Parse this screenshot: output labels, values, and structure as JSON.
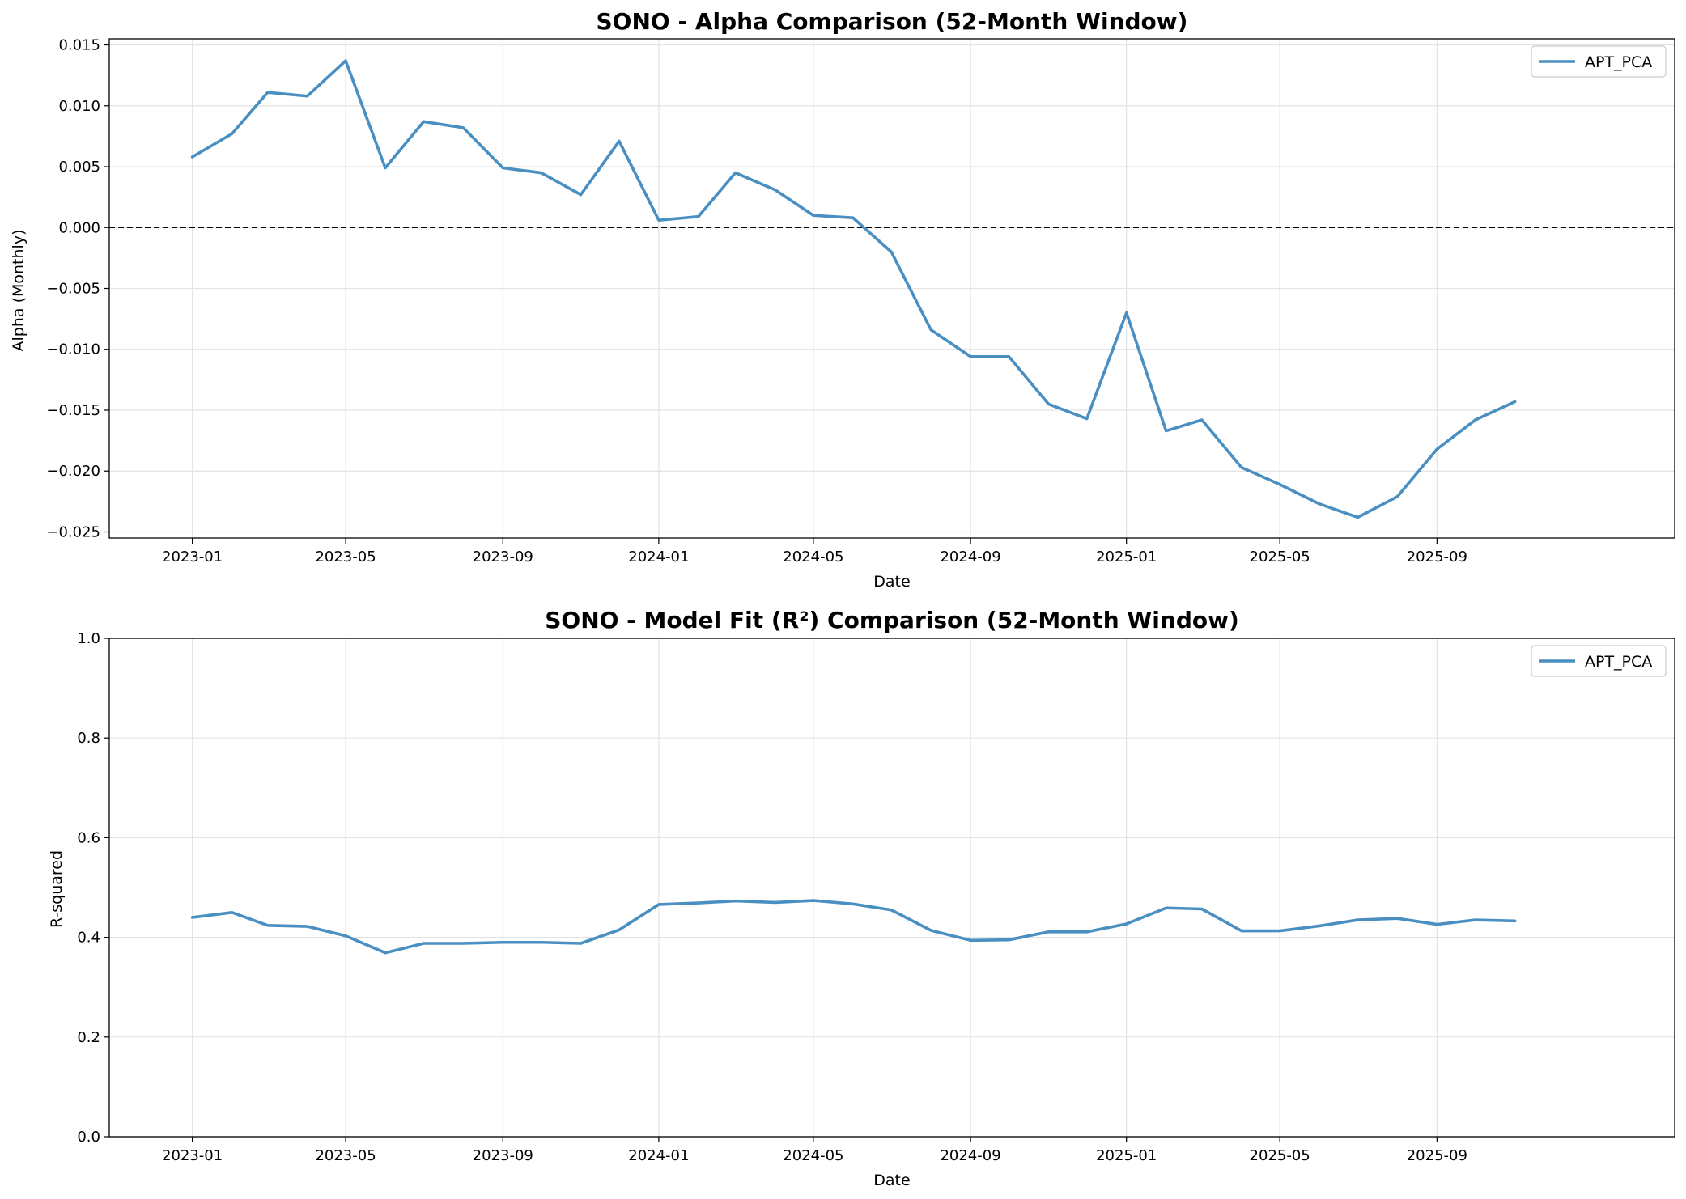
{
  "chart_data": [
    {
      "type": "line",
      "title": "SONO - Alpha Comparison (52-Month Window)",
      "xlabel": "Date",
      "ylabel": "Alpha (Monthly)",
      "x": [
        "2023-01",
        "2023-02",
        "2023-03",
        "2023-04",
        "2023-05",
        "2023-06",
        "2023-07",
        "2023-08",
        "2023-09",
        "2023-10",
        "2023-11",
        "2023-12",
        "2024-01",
        "2024-02",
        "2024-03",
        "2024-04",
        "2024-05",
        "2024-06",
        "2024-07",
        "2024-08",
        "2024-09",
        "2024-10",
        "2024-11",
        "2024-12",
        "2025-01",
        "2025-02",
        "2025-03",
        "2025-04",
        "2025-05",
        "2025-06",
        "2025-07",
        "2025-08",
        "2025-09",
        "2025-10",
        "2025-11"
      ],
      "series": [
        {
          "name": "APT_PCA",
          "color": "#4a8fc2",
          "values": [
            0.0058,
            0.0077,
            0.0111,
            0.0108,
            0.0137,
            0.0049,
            0.0087,
            0.0082,
            0.0049,
            0.0045,
            0.0027,
            0.0071,
            0.0006,
            0.0009,
            0.0045,
            0.0031,
            0.001,
            0.0008,
            -0.002,
            -0.0084,
            -0.0106,
            -0.0106,
            -0.0145,
            -0.0157,
            -0.007,
            -0.0167,
            -0.0158,
            -0.0197,
            -0.0211,
            -0.0227,
            -0.0238,
            -0.0221,
            -0.0182,
            -0.0158,
            -0.0143
          ]
        }
      ],
      "xlim": [
        "2022-10-28",
        "2026-03-06"
      ],
      "ylim": [
        -0.0255,
        0.0155
      ],
      "xticks": [
        "2023-01",
        "2023-05",
        "2023-09",
        "2024-01",
        "2024-05",
        "2024-09",
        "2025-01",
        "2025-05",
        "2025-09"
      ],
      "yticks": [
        -0.025,
        -0.02,
        -0.015,
        -0.01,
        -0.005,
        0.0,
        0.005,
        0.01,
        0.015
      ],
      "ytick_labels": [
        "−0.025",
        "−0.020",
        "−0.015",
        "−0.010",
        "−0.005",
        "0.000",
        "0.005",
        "0.010",
        "0.015"
      ],
      "reference_line": {
        "y": 0,
        "style": "dashed",
        "color": "#000000"
      },
      "grid": true,
      "legend": "top-right"
    },
    {
      "type": "line",
      "title": "SONO - Model Fit (R²) Comparison (52-Month Window)",
      "xlabel": "Date",
      "ylabel": "R-squared",
      "x": [
        "2023-01",
        "2023-02",
        "2023-03",
        "2023-04",
        "2023-05",
        "2023-06",
        "2023-07",
        "2023-08",
        "2023-09",
        "2023-10",
        "2023-11",
        "2023-12",
        "2024-01",
        "2024-02",
        "2024-03",
        "2024-04",
        "2024-05",
        "2024-06",
        "2024-07",
        "2024-08",
        "2024-09",
        "2024-10",
        "2024-11",
        "2024-12",
        "2025-01",
        "2025-02",
        "2025-03",
        "2025-04",
        "2025-05",
        "2025-06",
        "2025-07",
        "2025-08",
        "2025-09",
        "2025-10",
        "2025-11"
      ],
      "series": [
        {
          "name": "APT_PCA",
          "color": "#4a8fc2",
          "values": [
            0.44,
            0.45,
            0.424,
            0.422,
            0.403,
            0.369,
            0.388,
            0.388,
            0.39,
            0.39,
            0.388,
            0.415,
            0.466,
            0.469,
            0.473,
            0.47,
            0.474,
            0.467,
            0.455,
            0.414,
            0.394,
            0.395,
            0.411,
            0.411,
            0.427,
            0.459,
            0.457,
            0.413,
            0.413,
            0.423,
            0.435,
            0.438,
            0.426,
            0.435,
            0.433
          ]
        }
      ],
      "xlim": [
        "2022-10-28",
        "2026-03-06"
      ],
      "ylim": [
        0,
        1
      ],
      "xticks": [
        "2023-01",
        "2023-05",
        "2023-09",
        "2024-01",
        "2024-05",
        "2024-09",
        "2025-01",
        "2025-05",
        "2025-09"
      ],
      "yticks": [
        0.0,
        0.2,
        0.4,
        0.6,
        0.8,
        1.0
      ],
      "ytick_labels": [
        "0.0",
        "0.2",
        "0.4",
        "0.6",
        "0.8",
        "1.0"
      ],
      "grid": true,
      "legend": "top-right"
    }
  ]
}
